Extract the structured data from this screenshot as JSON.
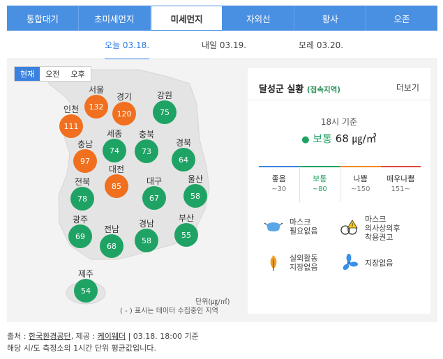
{
  "tabs": [
    "통합대기",
    "초미세먼지",
    "미세먼지",
    "자외선",
    "황사",
    "오존"
  ],
  "active_tab": "미세먼지",
  "days": [
    "오늘 03.18.",
    "내일 03.19.",
    "모레 03.20."
  ],
  "segments": [
    "현재",
    "오전",
    "오후"
  ],
  "cities": [
    {
      "name": "서울",
      "value": "132",
      "level": "bad"
    },
    {
      "name": "경기",
      "value": "120",
      "level": "bad"
    },
    {
      "name": "강원",
      "value": "75",
      "level": "normal"
    },
    {
      "name": "인천",
      "value": "111",
      "level": "bad"
    },
    {
      "name": "세종",
      "value": "74",
      "level": "normal"
    },
    {
      "name": "충북",
      "value": "73",
      "level": "normal"
    },
    {
      "name": "경북",
      "value": "64",
      "level": "normal"
    },
    {
      "name": "충남",
      "value": "97",
      "level": "bad"
    },
    {
      "name": "대전",
      "value": "85",
      "level": "bad"
    },
    {
      "name": "전북",
      "value": "78",
      "level": "normal"
    },
    {
      "name": "대구",
      "value": "67",
      "level": "normal"
    },
    {
      "name": "울산",
      "value": "58",
      "level": "normal"
    },
    {
      "name": "광주",
      "value": "69",
      "level": "normal"
    },
    {
      "name": "전남",
      "value": "68",
      "level": "normal"
    },
    {
      "name": "경남",
      "value": "58",
      "level": "normal"
    },
    {
      "name": "부산",
      "value": "55",
      "level": "normal"
    },
    {
      "name": "제주",
      "value": "54",
      "level": "normal"
    }
  ],
  "map_unit": "단위(㎍/㎥)",
  "map_note": "( - ) 표시는 데이터 수집중인 지역",
  "panel": {
    "title": "달성군 실황",
    "subtitle": "(접속지역)",
    "more": "더보기",
    "time": "18시 기준",
    "level": "보통",
    "value": "68",
    "unit": "㎍/㎥",
    "grades": [
      {
        "label": "좋음",
        "range": "~30"
      },
      {
        "label": "보통",
        "range": "~80"
      },
      {
        "label": "나쁨",
        "range": "~150"
      },
      {
        "label": "매우나쁨",
        "range": "151~"
      }
    ],
    "tips": [
      {
        "line1": "마스크",
        "line2": "필요없음"
      },
      {
        "line1": "마스크",
        "line2": "의사상의후",
        "line3": "착용권고"
      },
      {
        "line1": "실외활동",
        "line2": "지장없음"
      },
      {
        "line1": "지장없음"
      }
    ]
  },
  "footer": {
    "prefix": "출처 : ",
    "source": "한국환경공단",
    "mid": ", 제공 : ",
    "provider": "케이웨더",
    "suffix": " | 03.18. 18:00 기준",
    "line2": "해당 시/도 측정소의 1시간 단위 평균값입니다."
  },
  "colors": {
    "accent": "#4a90e2",
    "good": "#1fa364",
    "bad": "#f0701f"
  }
}
